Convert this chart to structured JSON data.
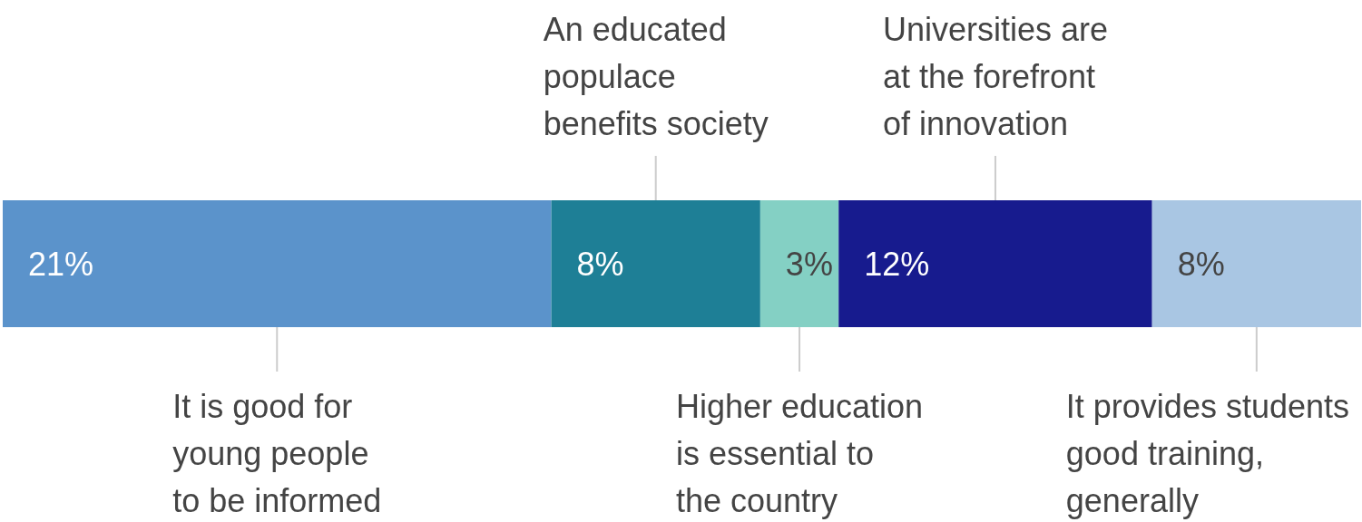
{
  "chart_data": {
    "type": "bar",
    "orientation": "horizontal",
    "stacked": true,
    "categories": [
      null
    ],
    "xlim": [
      0,
      52
    ],
    "tick_labels": false,
    "grid": false,
    "series": [
      {
        "name": "It is good for\nyoung people\nto be informed",
        "color": "#5b93cb",
        "values": [
          21
        ],
        "value_labels": [
          "21%"
        ]
      },
      {
        "name": "An educated\npopulace\nbenefits society",
        "color": "#1e7f96",
        "values": [
          8
        ],
        "value_labels": [
          "8%"
        ]
      },
      {
        "name": "Higher education\nis essential to\nthe country",
        "color": "#84d0c4",
        "values": [
          3
        ],
        "value_labels": [
          "3%"
        ]
      },
      {
        "name": "Universities are\nat the forefront\nof innovation",
        "color": "#171b8e",
        "values": [
          12
        ],
        "value_labels": [
          "12%"
        ]
      },
      {
        "name": "It provides students\ngood training,\ngenerally",
        "color": "#a9c6e3",
        "values": [
          8
        ],
        "value_labels": [
          "8%"
        ]
      }
    ]
  }
}
